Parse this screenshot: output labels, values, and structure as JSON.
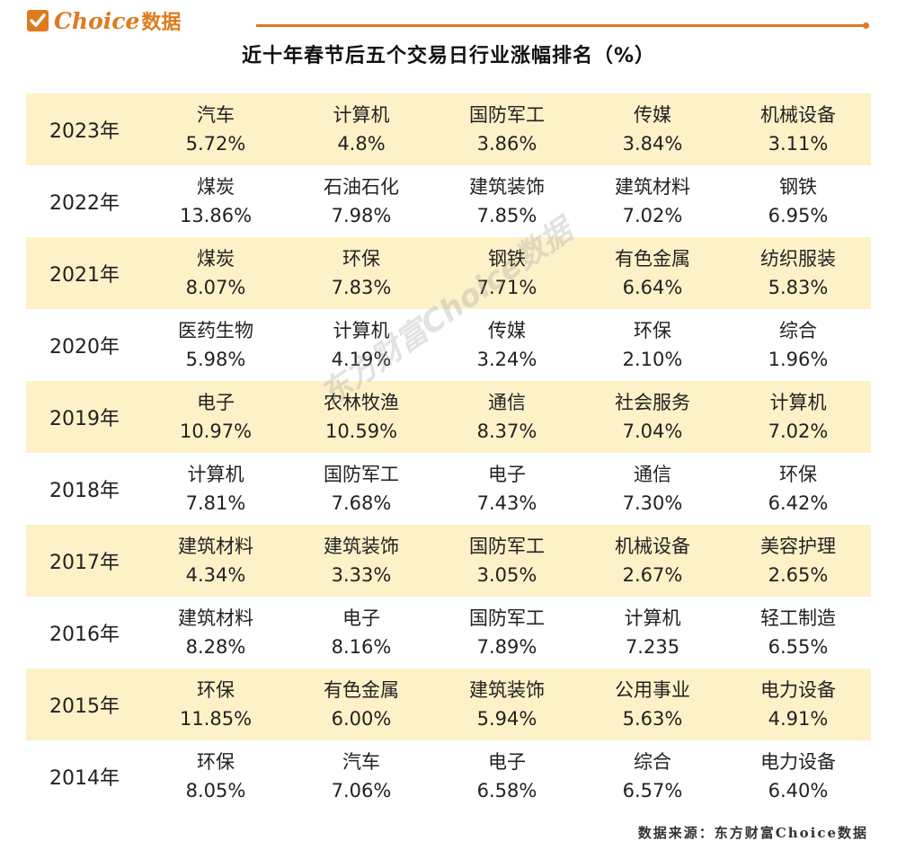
{
  "header": {
    "brand": "Choice",
    "brand_cn": "数据",
    "accent_color": "#e07a1f",
    "logo_icon": "check-icon"
  },
  "title": "近十年春节后五个交易日行业涨幅排名（%）",
  "watermark": "东方财富Choice数据",
  "source": "数据来源：东方财富Choice数据",
  "table": {
    "row_shade_color": "#fdf1c8",
    "rows": [
      {
        "year": "2023年",
        "cells": [
          {
            "industry": "汽车",
            "value": "5.72%"
          },
          {
            "industry": "计算机",
            "value": "4.8%"
          },
          {
            "industry": "国防军工",
            "value": "3.86%"
          },
          {
            "industry": "传媒",
            "value": "3.84%"
          },
          {
            "industry": "机械设备",
            "value": "3.11%"
          }
        ]
      },
      {
        "year": "2022年",
        "cells": [
          {
            "industry": "煤炭",
            "value": "13.86%"
          },
          {
            "industry": "石油石化",
            "value": "7.98%"
          },
          {
            "industry": "建筑装饰",
            "value": "7.85%"
          },
          {
            "industry": "建筑材料",
            "value": "7.02%"
          },
          {
            "industry": "钢铁",
            "value": "6.95%"
          }
        ]
      },
      {
        "year": "2021年",
        "cells": [
          {
            "industry": "煤炭",
            "value": "8.07%"
          },
          {
            "industry": "环保",
            "value": "7.83%"
          },
          {
            "industry": "钢铁",
            "value": "7.71%"
          },
          {
            "industry": "有色金属",
            "value": "6.64%"
          },
          {
            "industry": "纺织服装",
            "value": "5.83%"
          }
        ]
      },
      {
        "year": "2020年",
        "cells": [
          {
            "industry": "医药生物",
            "value": "5.98%"
          },
          {
            "industry": "计算机",
            "value": "4.19%"
          },
          {
            "industry": "传媒",
            "value": "3.24%"
          },
          {
            "industry": "环保",
            "value": "2.10%"
          },
          {
            "industry": "综合",
            "value": "1.96%"
          }
        ]
      },
      {
        "year": "2019年",
        "cells": [
          {
            "industry": "电子",
            "value": "10.97%"
          },
          {
            "industry": "农林牧渔",
            "value": "10.59%"
          },
          {
            "industry": "通信",
            "value": "8.37%"
          },
          {
            "industry": "社会服务",
            "value": "7.04%"
          },
          {
            "industry": "计算机",
            "value": "7.02%"
          }
        ]
      },
      {
        "year": "2018年",
        "cells": [
          {
            "industry": "计算机",
            "value": "7.81%"
          },
          {
            "industry": "国防军工",
            "value": "7.68%"
          },
          {
            "industry": "电子",
            "value": "7.43%"
          },
          {
            "industry": "通信",
            "value": "7.30%"
          },
          {
            "industry": "环保",
            "value": "6.42%"
          }
        ]
      },
      {
        "year": "2017年",
        "cells": [
          {
            "industry": "建筑材料",
            "value": "4.34%"
          },
          {
            "industry": "建筑装饰",
            "value": "3.33%"
          },
          {
            "industry": "国防军工",
            "value": "3.05%"
          },
          {
            "industry": "机械设备",
            "value": "2.67%"
          },
          {
            "industry": "美容护理",
            "value": "2.65%"
          }
        ]
      },
      {
        "year": "2016年",
        "cells": [
          {
            "industry": "建筑材料",
            "value": "8.28%"
          },
          {
            "industry": "电子",
            "value": "8.16%"
          },
          {
            "industry": "国防军工",
            "value": "7.89%"
          },
          {
            "industry": "计算机",
            "value": "7.235"
          },
          {
            "industry": "轻工制造",
            "value": "6.55%"
          }
        ]
      },
      {
        "year": "2015年",
        "cells": [
          {
            "industry": "环保",
            "value": "11.85%"
          },
          {
            "industry": "有色金属",
            "value": "6.00%"
          },
          {
            "industry": "建筑装饰",
            "value": "5.94%"
          },
          {
            "industry": "公用事业",
            "value": "5.63%"
          },
          {
            "industry": "电力设备",
            "value": "4.91%"
          }
        ]
      },
      {
        "year": "2014年",
        "cells": [
          {
            "industry": "环保",
            "value": "8.05%"
          },
          {
            "industry": "汽车",
            "value": "7.06%"
          },
          {
            "industry": "电子",
            "value": "6.58%"
          },
          {
            "industry": "综合",
            "value": "6.57%"
          },
          {
            "industry": "电力设备",
            "value": "6.40%"
          }
        ]
      }
    ]
  }
}
